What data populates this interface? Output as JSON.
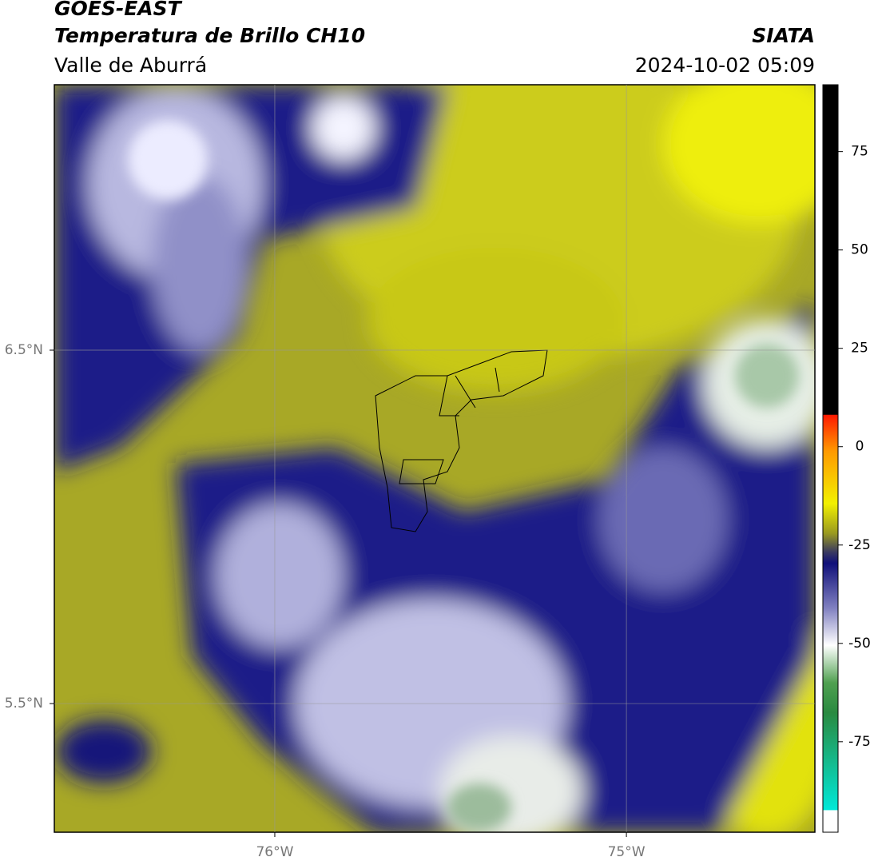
{
  "header": {
    "satellite": "GOES-EAST",
    "product": "Temperatura de Brillo CH10",
    "region": "Valle de Aburrá",
    "agency": "SIATA",
    "datetime": "2024-10-02 05:09"
  },
  "map": {
    "xlim": [
      -76.627,
      -74.464
    ],
    "ylim": [
      5.136,
      7.251
    ],
    "xticks": [
      {
        "value": -76,
        "label": "76°W"
      },
      {
        "value": -75,
        "label": "75°W"
      }
    ],
    "yticks": [
      {
        "value": 6.5,
        "label": "6.5°N"
      },
      {
        "value": 5.5,
        "label": "5.5°N"
      }
    ]
  },
  "colorbar": {
    "clim": [
      -98,
      92
    ],
    "ticks": [
      75,
      50,
      25,
      0,
      -25,
      -50,
      -75
    ]
  }
}
